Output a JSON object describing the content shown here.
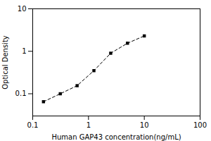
{
  "chart_data": {
    "type": "line",
    "xlabel": "Human GAP43 concentration(ng/mL)",
    "ylabel": "Optical Density",
    "x": [
      0.156,
      0.312,
      0.625,
      1.25,
      2.5,
      5.0,
      10.0
    ],
    "values": [
      0.065,
      0.1,
      0.155,
      0.35,
      0.9,
      1.55,
      2.3
    ],
    "xlim": [
      0.1,
      100
    ],
    "ylim": [
      0.03,
      10
    ],
    "xticks": [
      0.1,
      1,
      10,
      100
    ],
    "yticks": [
      0.1,
      1,
      10
    ],
    "log": true,
    "marker": "square",
    "line_style": "dashed"
  }
}
